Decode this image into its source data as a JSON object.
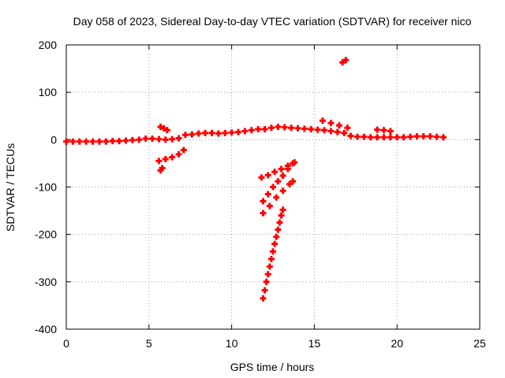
{
  "chart_data": {
    "type": "scatter",
    "title": "Day 058 of 2023, Sidereal Day-to-day VTEC variation (SDTVAR) for receiver nico",
    "xlabel": "GPS time / hours",
    "ylabel": "SDTVAR / TECUs",
    "xlim": [
      0,
      25
    ],
    "ylim": [
      -400,
      200
    ],
    "xticks": [
      0,
      5,
      10,
      15,
      20,
      25
    ],
    "yticks": [
      -400,
      -300,
      -200,
      -100,
      0,
      100,
      200
    ],
    "grid": true,
    "legend": "none",
    "marker": "plus",
    "series": [
      {
        "color": "#ff0000",
        "points": [
          [
            0.0,
            -4
          ],
          [
            0.4,
            -4
          ],
          [
            0.8,
            -4
          ],
          [
            1.2,
            -4
          ],
          [
            1.6,
            -4
          ],
          [
            2.0,
            -4
          ],
          [
            2.4,
            -4
          ],
          [
            2.8,
            -3
          ],
          [
            3.2,
            -3
          ],
          [
            3.6,
            -2
          ],
          [
            4.0,
            -1
          ],
          [
            4.4,
            0
          ],
          [
            4.8,
            2
          ],
          [
            5.2,
            2
          ],
          [
            5.6,
            1
          ],
          [
            6.0,
            0
          ],
          [
            6.4,
            1
          ],
          [
            6.8,
            3
          ],
          [
            7.2,
            10
          ],
          [
            7.6,
            11
          ],
          [
            8.0,
            13
          ],
          [
            8.4,
            14
          ],
          [
            8.8,
            14
          ],
          [
            9.2,
            13
          ],
          [
            9.6,
            14
          ],
          [
            10.0,
            15
          ],
          [
            10.4,
            16
          ],
          [
            10.8,
            18
          ],
          [
            11.2,
            20
          ],
          [
            11.6,
            22
          ],
          [
            12.0,
            22
          ],
          [
            12.4,
            25
          ],
          [
            12.8,
            27
          ],
          [
            13.2,
            26
          ],
          [
            13.6,
            25
          ],
          [
            14.0,
            24
          ],
          [
            14.4,
            23
          ],
          [
            14.8,
            22
          ],
          [
            15.2,
            21
          ],
          [
            15.6,
            20
          ],
          [
            16.0,
            18
          ],
          [
            16.4,
            16
          ],
          [
            16.8,
            14
          ],
          [
            17.2,
            8
          ],
          [
            17.6,
            6
          ],
          [
            18.0,
            6
          ],
          [
            18.4,
            5
          ],
          [
            18.8,
            5
          ],
          [
            19.2,
            5
          ],
          [
            19.6,
            5
          ],
          [
            20.0,
            5
          ],
          [
            20.4,
            5
          ],
          [
            20.8,
            6
          ],
          [
            21.2,
            7
          ],
          [
            21.6,
            7
          ],
          [
            22.0,
            7
          ],
          [
            22.4,
            6
          ],
          [
            22.8,
            5
          ],
          [
            5.7,
            27
          ],
          [
            5.9,
            24
          ],
          [
            6.1,
            20
          ],
          [
            5.6,
            -45
          ],
          [
            6.0,
            -41
          ],
          [
            6.4,
            -37
          ],
          [
            6.8,
            -31
          ],
          [
            7.1,
            -22
          ],
          [
            5.7,
            -65
          ],
          [
            5.8,
            -60
          ],
          [
            15.5,
            40
          ],
          [
            16.0,
            35
          ],
          [
            16.5,
            30
          ],
          [
            17.0,
            25
          ],
          [
            16.7,
            163
          ],
          [
            16.9,
            168
          ],
          [
            18.8,
            21
          ],
          [
            19.2,
            20
          ],
          [
            19.6,
            18
          ],
          [
            11.8,
            -80
          ],
          [
            12.2,
            -75
          ],
          [
            12.6,
            -68
          ],
          [
            13.0,
            -62
          ],
          [
            13.4,
            -55
          ],
          [
            13.8,
            -48
          ],
          [
            11.9,
            -130
          ],
          [
            12.2,
            -115
          ],
          [
            12.5,
            -100
          ],
          [
            12.8,
            -88
          ],
          [
            13.1,
            -76
          ],
          [
            13.4,
            -62
          ],
          [
            13.7,
            -50
          ],
          [
            11.9,
            -155
          ],
          [
            12.3,
            -140
          ],
          [
            12.7,
            -122
          ],
          [
            13.1,
            -108
          ],
          [
            13.5,
            -94
          ],
          [
            13.7,
            -88
          ],
          [
            11.9,
            -335
          ],
          [
            12.0,
            -318
          ],
          [
            12.1,
            -300
          ],
          [
            12.2,
            -284
          ],
          [
            12.3,
            -268
          ],
          [
            12.4,
            -252
          ],
          [
            12.5,
            -236
          ],
          [
            12.6,
            -220
          ],
          [
            12.7,
            -205
          ],
          [
            12.8,
            -190
          ],
          [
            12.9,
            -175
          ],
          [
            13.0,
            -160
          ],
          [
            13.1,
            -148
          ]
        ]
      }
    ]
  }
}
